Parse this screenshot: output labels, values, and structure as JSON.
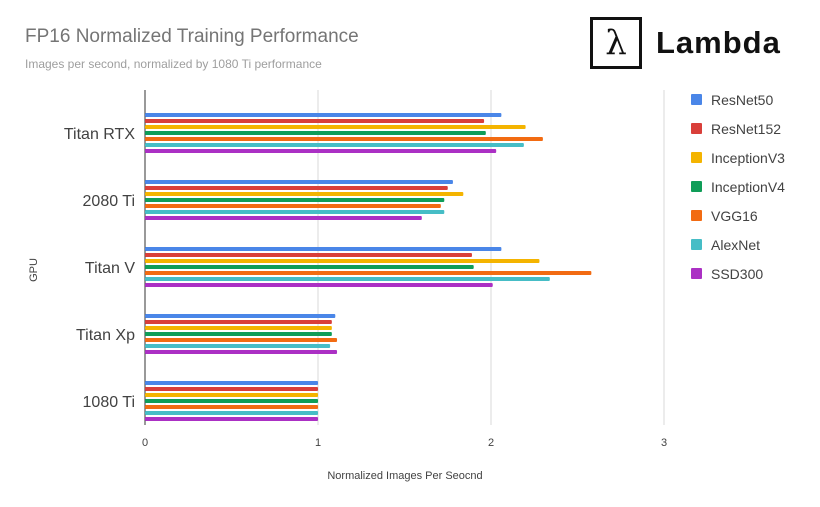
{
  "header": {
    "title": "FP16 Normalized Training Performance",
    "subtitle": "Images per second, normalized by 1080 Ti performance"
  },
  "logo": {
    "symbol": "λ",
    "name": "Lambda"
  },
  "chart_data": {
    "type": "bar",
    "orientation": "horizontal",
    "title": "FP16 Normalized Training Performance",
    "subtitle": "Images per second, normalized by 1080 Ti performance",
    "xlabel": "Normalized Images Per Seocnd",
    "ylabel": "GPU",
    "xlim": [
      0,
      3
    ],
    "xticks": [
      "0",
      "1",
      "2",
      "3"
    ],
    "grid": true,
    "legend_position": "right",
    "categories": [
      "Titan RTX",
      "2080 Ti",
      "Titan V",
      "Titan Xp",
      "1080 Ti"
    ],
    "series": [
      {
        "name": "ResNet50",
        "color": "#4a86e8",
        "values": [
          2.06,
          1.78,
          2.06,
          1.1,
          1.0
        ]
      },
      {
        "name": "ResNet152",
        "color": "#d93f3a",
        "values": [
          1.96,
          1.75,
          1.89,
          1.08,
          1.0
        ]
      },
      {
        "name": "InceptionV3",
        "color": "#f4b400",
        "values": [
          2.2,
          1.84,
          2.28,
          1.08,
          1.0
        ]
      },
      {
        "name": "InceptionV4",
        "color": "#0f9d58",
        "values": [
          1.97,
          1.73,
          1.9,
          1.08,
          1.0
        ]
      },
      {
        "name": "VGG16",
        "color": "#f26b12",
        "values": [
          2.3,
          1.71,
          2.58,
          1.11,
          1.0
        ]
      },
      {
        "name": "AlexNet",
        "color": "#46bdc6",
        "values": [
          2.19,
          1.73,
          2.34,
          1.07,
          1.0
        ]
      },
      {
        "name": "SSD300",
        "color": "#ab30c4",
        "values": [
          2.03,
          1.6,
          2.01,
          1.11,
          1.0
        ]
      }
    ]
  }
}
